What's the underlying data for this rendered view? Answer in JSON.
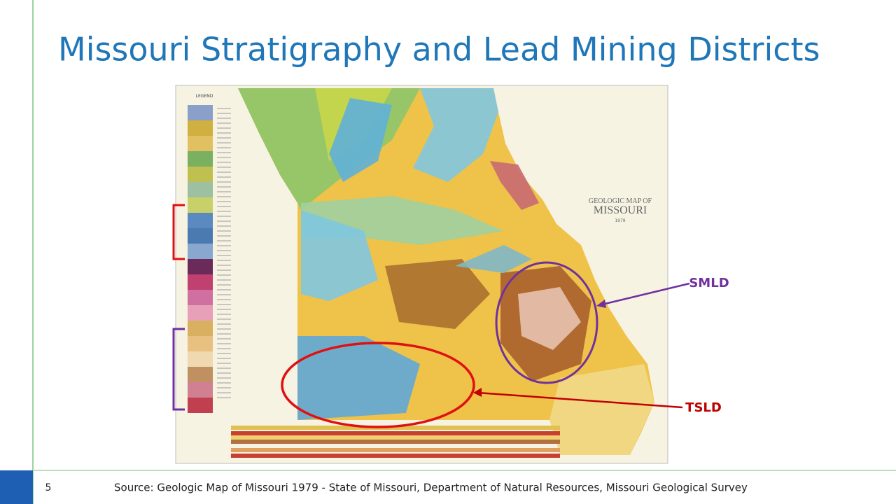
{
  "slide": {
    "title": "Missouri Stratigraphy and Lead Mining Districts",
    "map": {
      "legend_heading": "LEGEND",
      "map_title_line1": "GEOLOGIC MAP OF",
      "map_title_line2": "MISSOURI",
      "map_year": "1979"
    },
    "callouts": [
      {
        "label": "SMLD"
      },
      {
        "label": "TSLD"
      }
    ],
    "slide_number": "5",
    "source": "Source: Geologic Map of Missouri 1979 - State of Missouri, Department of Natural Resources, Missouri Geological Survey"
  }
}
